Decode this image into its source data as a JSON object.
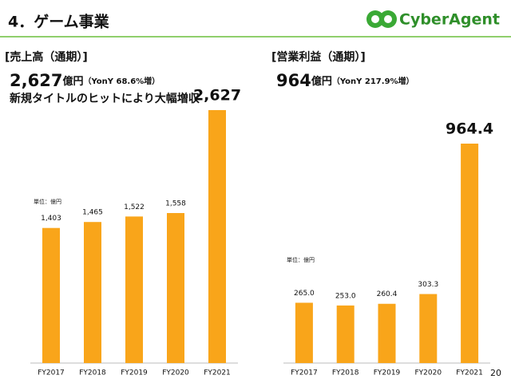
{
  "header": {
    "title": "4．ゲーム事業",
    "logo": "CyberAgent"
  },
  "page_number": "20",
  "chart_data": [
    {
      "type": "bar",
      "title": "[売上高（通期）]",
      "headline": {
        "amount": "2,627",
        "unit": "億円",
        "note": "（YonY 68.6%増）"
      },
      "subheadline": "新規タイトルのヒットにより大幅増収",
      "unit_label": "単位：億円",
      "categories": [
        "FY2017",
        "FY2018",
        "FY2019",
        "FY2020",
        "FY2021"
      ],
      "values": [
        1403,
        1465,
        1522,
        1558,
        2627
      ],
      "value_labels": [
        "1,403",
        "1,465",
        "1,522",
        "1,558",
        "2,627"
      ],
      "color": "#f9a51a"
    },
    {
      "type": "bar",
      "title": "[営業利益（通期）]",
      "headline": {
        "amount": "964",
        "unit": "億円",
        "note": "（YonY 217.9%増）"
      },
      "unit_label": "単位：億円",
      "categories": [
        "FY2017",
        "FY2018",
        "FY2019",
        "FY2020",
        "FY2021"
      ],
      "values": [
        265.0,
        253.0,
        260.4,
        303.3,
        964.4
      ],
      "value_labels": [
        "265.0",
        "253.0",
        "260.4",
        "303.3",
        "964.4"
      ],
      "color": "#f9a51a"
    }
  ]
}
